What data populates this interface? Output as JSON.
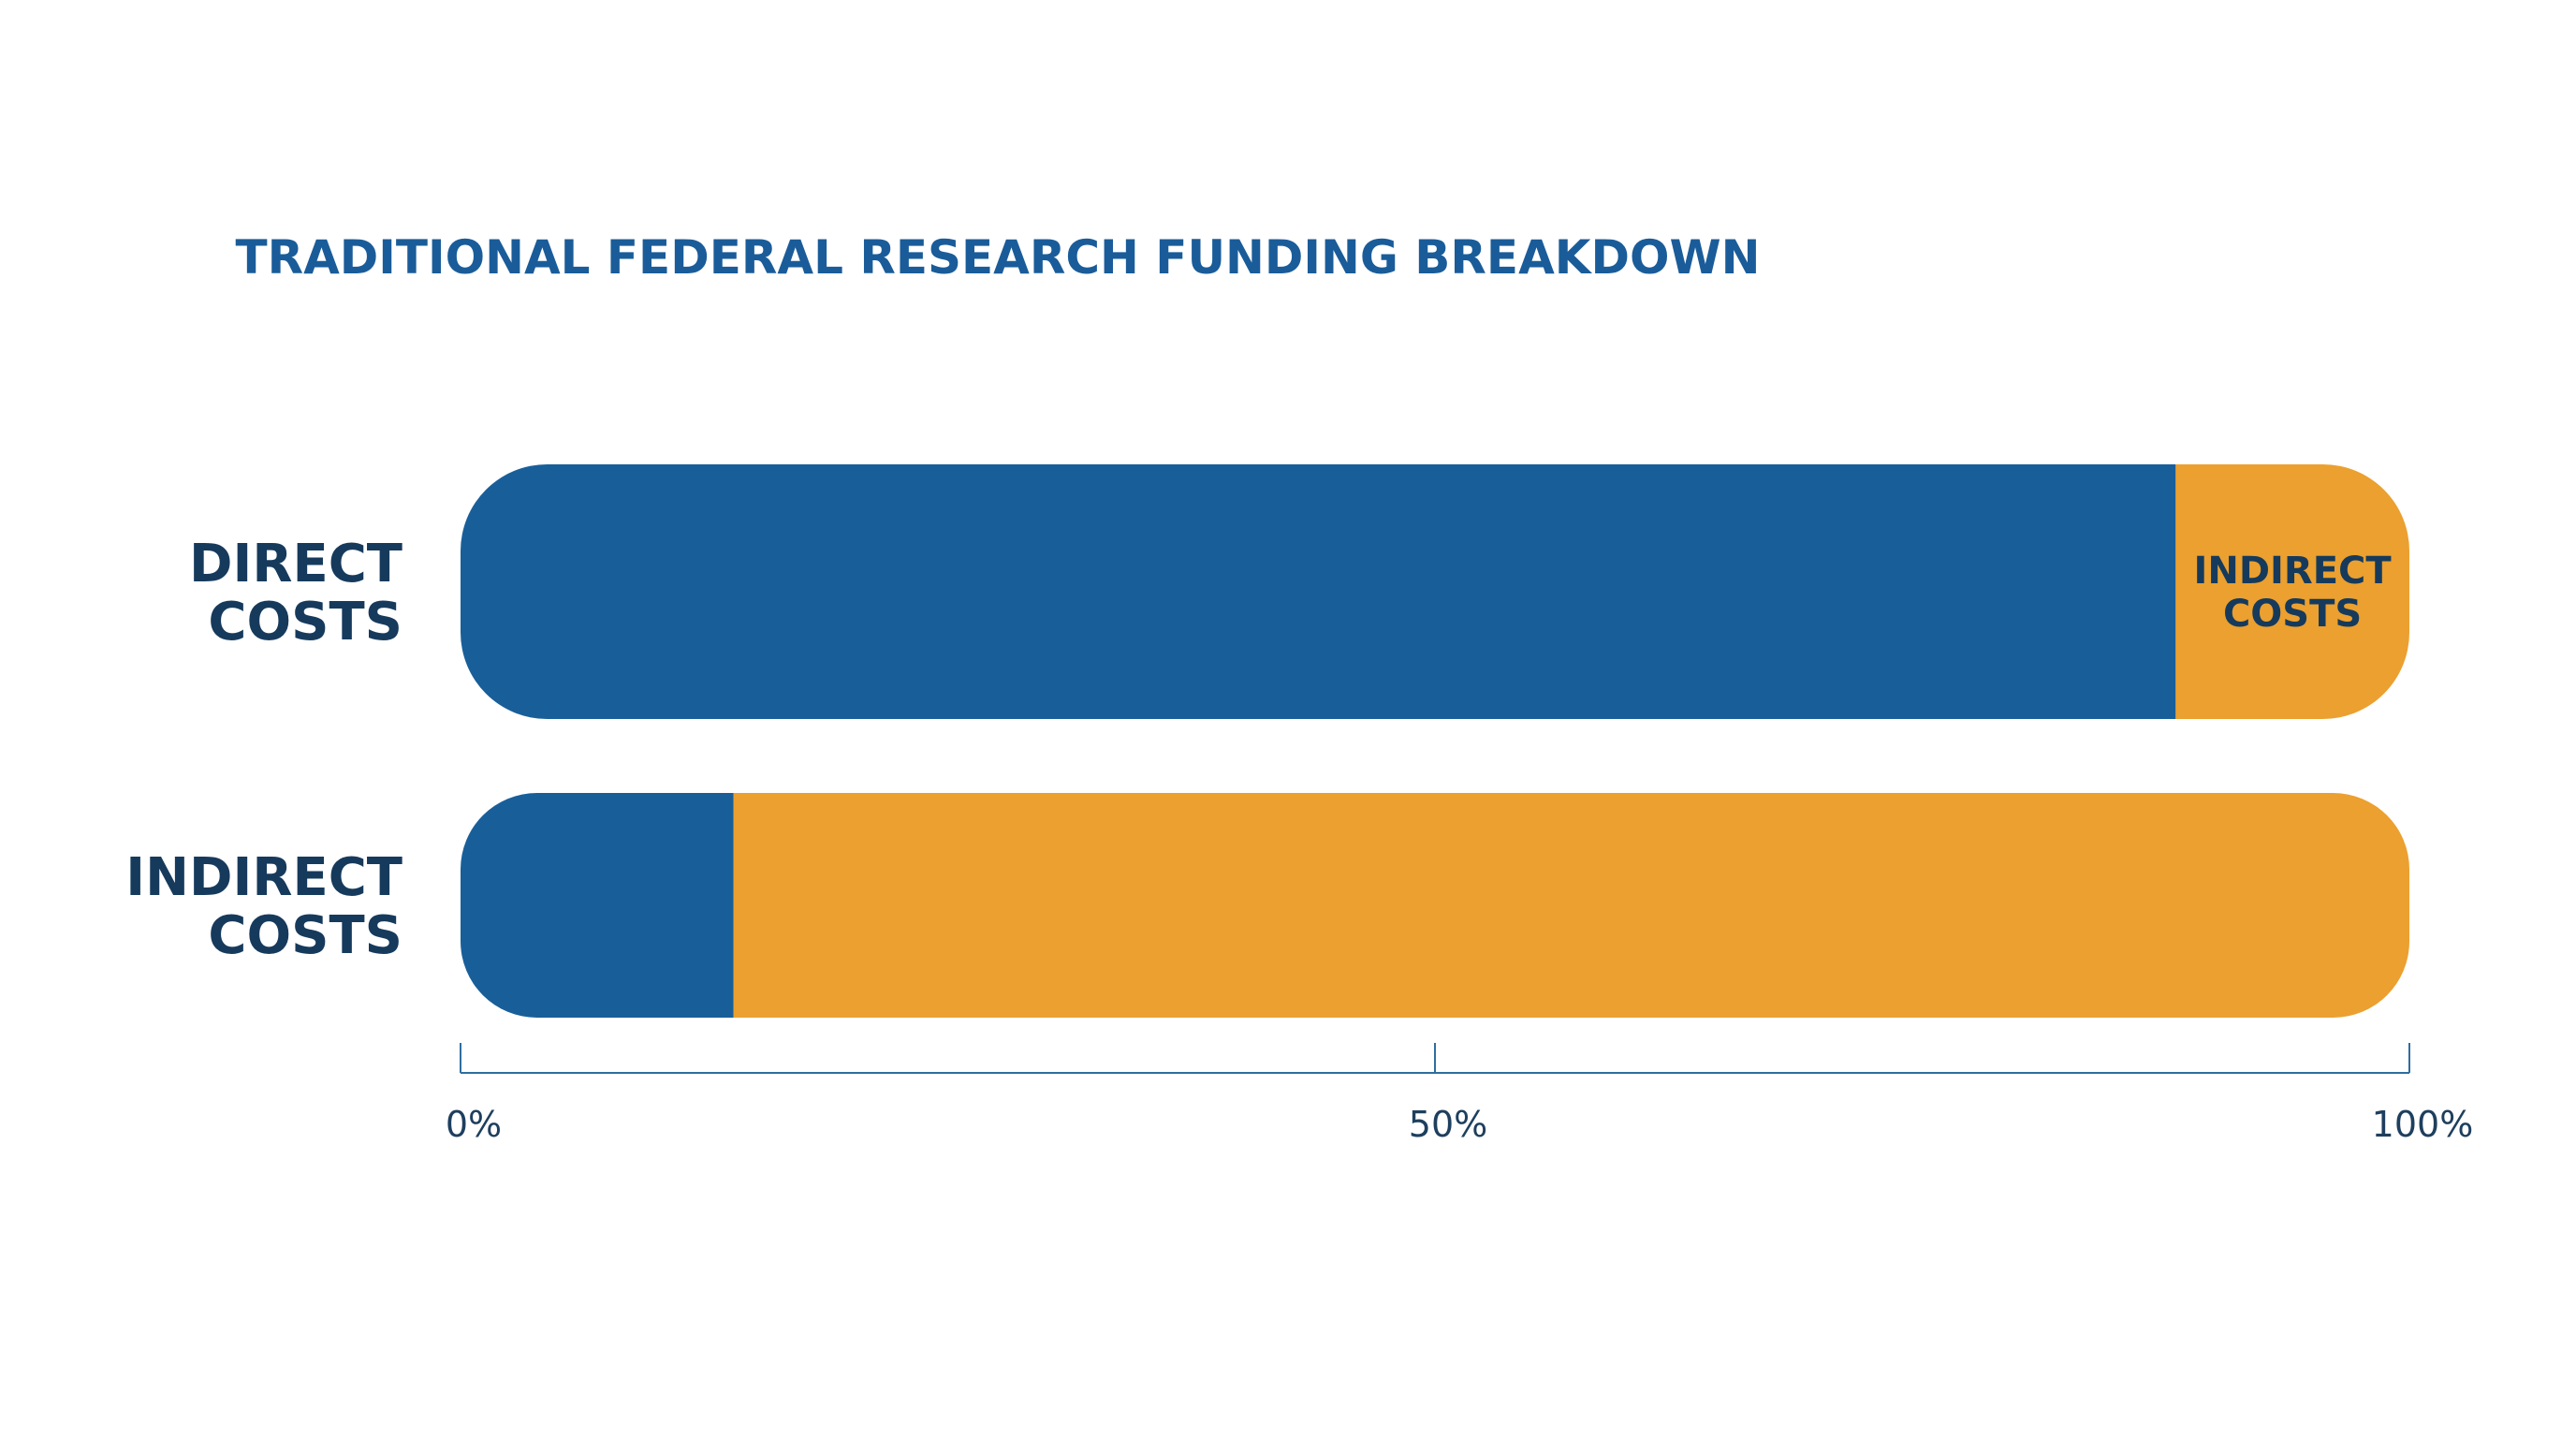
{
  "chart_data": {
    "type": "bar",
    "orientation": "horizontal",
    "stacked": true,
    "title": "TRADITIONAL FEDERAL RESEARCH FUNDING BREAKDOWN",
    "categories": [
      [
        "DIRECT",
        "COSTS"
      ],
      [
        "INDIRECT",
        "COSTS"
      ]
    ],
    "series": [
      {
        "values": [
          88,
          14
        ],
        "color": "#185F9A",
        "segment_labels": [
          null,
          null
        ]
      },
      {
        "values": [
          12,
          86
        ],
        "color": "#EBA02F",
        "segment_labels": [
          [
            "INDIRECT",
            "COSTS"
          ],
          null
        ]
      }
    ],
    "xlim": [
      0,
      100
    ],
    "x_ticks": [
      {
        "value": 0,
        "label": "0%"
      },
      {
        "value": 50,
        "label": "50%"
      },
      {
        "value": 100,
        "label": "100%"
      }
    ],
    "grid": false,
    "legend": "none"
  },
  "colors": {
    "title": "#1A5C99",
    "row_label": "#163A5C",
    "segment_label": "#163A5C",
    "axis": "#2F6E9F",
    "tick_label": "#1E3F5E",
    "background": "#FFFFFF"
  }
}
